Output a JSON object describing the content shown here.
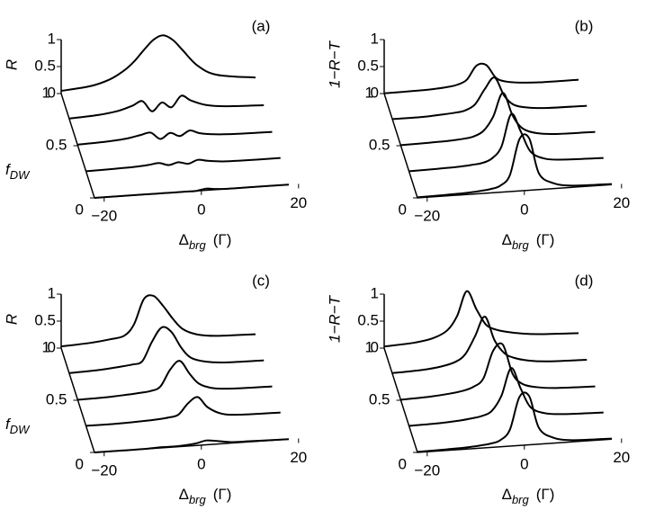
{
  "chart_data": [
    {
      "type": "waterfall",
      "panel_label": "(a)",
      "y_label": "R",
      "z_label": "f",
      "z_label_sub": "DW",
      "x_label": "Δ",
      "x_label_sub": "brg",
      "x_unit": "(Γ)",
      "xlim": [
        -22,
        18
      ],
      "xticks": [
        {
          "value": -20,
          "label": "−20"
        },
        0,
        20
      ],
      "yticks": [
        0,
        0.5,
        1
      ],
      "zticks": [
        0,
        0.5,
        1
      ],
      "color": "#000000",
      "x": [
        -22,
        -16,
        -12,
        -9,
        -7,
        -5,
        -3,
        -1,
        1,
        3,
        6,
        10,
        18
      ],
      "series": [
        {
          "z": 1,
          "values": [
            0.05,
            0.1,
            0.2,
            0.35,
            0.5,
            0.7,
            0.88,
            0.95,
            0.85,
            0.65,
            0.35,
            0.15,
            0.05
          ]
        },
        {
          "z": 0.75,
          "values": [
            0.02,
            0.05,
            0.1,
            0.18,
            0.25,
            0.05,
            0.2,
            0.1,
            0.3,
            0.2,
            0.1,
            0.05,
            0.02
          ]
        },
        {
          "z": 0.5,
          "values": [
            0.02,
            0.04,
            0.07,
            0.12,
            0.15,
            0.02,
            0.12,
            0.05,
            0.14,
            0.08,
            0.04,
            0.02,
            0.01
          ]
        },
        {
          "z": 0.25,
          "values": [
            0.01,
            0.02,
            0.03,
            0.05,
            0.07,
            0.02,
            0.06,
            0.02,
            0.08,
            0.05,
            0.02,
            0.01,
            0.01
          ]
        },
        {
          "z": 0,
          "values": [
            0,
            0,
            0,
            0,
            0,
            0,
            0,
            0,
            0.03,
            0.01,
            0,
            0,
            0
          ]
        }
      ]
    },
    {
      "type": "waterfall",
      "panel_label": "(b)",
      "y_label": "1−R−T",
      "z_label": "",
      "z_label_sub": "",
      "x_label": "Δ",
      "x_label_sub": "brg",
      "x_unit": "(Γ)",
      "xlim": [
        -22,
        18
      ],
      "xticks": [
        {
          "value": -20,
          "label": "−20"
        },
        0,
        20
      ],
      "yticks": [
        0,
        0.5,
        1
      ],
      "zticks": [
        0,
        0.5,
        1
      ],
      "color": "#000000",
      "x": [
        -22,
        -16,
        -12,
        -9,
        -7,
        -5,
        -3,
        -1,
        1,
        3,
        6,
        10,
        18
      ],
      "series": [
        {
          "z": 1,
          "values": [
            0.005,
            0.01,
            0.02,
            0.04,
            0.07,
            0.15,
            0.4,
            0.4,
            0.15,
            0.07,
            0.03,
            0.01,
            0.01
          ]
        },
        {
          "z": 0.75,
          "values": [
            0.01,
            0.01,
            0.03,
            0.05,
            0.08,
            0.18,
            0.45,
            0.65,
            0.3,
            0.12,
            0.05,
            0.02,
            0.01
          ]
        },
        {
          "z": 0.5,
          "values": [
            0.01,
            0.02,
            0.03,
            0.05,
            0.08,
            0.17,
            0.42,
            0.85,
            0.42,
            0.17,
            0.06,
            0.02,
            0.01
          ]
        },
        {
          "z": 0.25,
          "values": [
            0.01,
            0.02,
            0.03,
            0.05,
            0.07,
            0.14,
            0.35,
            0.94,
            0.6,
            0.22,
            0.07,
            0.03,
            0.01
          ]
        },
        {
          "z": 0,
          "values": [
            0.01,
            0.02,
            0.03,
            0.05,
            0.07,
            0.12,
            0.3,
            0.96,
            0.96,
            0.3,
            0.1,
            0.03,
            0.01
          ]
        }
      ]
    },
    {
      "type": "waterfall",
      "panel_label": "(c)",
      "y_label": "R",
      "z_label": "f",
      "z_label_sub": "DW",
      "x_label": "Δ",
      "x_label_sub": "brg",
      "x_unit": "(Γ)",
      "xlim": [
        -22,
        18
      ],
      "xticks": [
        {
          "value": -20,
          "label": "−20"
        },
        0,
        20
      ],
      "yticks": [
        0,
        0.5,
        1
      ],
      "zticks": [
        0,
        0.5,
        1
      ],
      "color": "#000000",
      "x": [
        -22,
        -16,
        -12,
        -9,
        -7,
        -5,
        -3,
        -1,
        1,
        3,
        6,
        10,
        18
      ],
      "series": [
        {
          "z": 1,
          "values": [
            0.03,
            0.06,
            0.1,
            0.15,
            0.35,
            0.8,
            0.85,
            0.65,
            0.4,
            0.2,
            0.08,
            0.03,
            0.01
          ]
        },
        {
          "z": 0.75,
          "values": [
            0.02,
            0.04,
            0.07,
            0.1,
            0.15,
            0.5,
            0.75,
            0.65,
            0.35,
            0.15,
            0.06,
            0.02,
            0.01
          ]
        },
        {
          "z": 0.5,
          "values": [
            0.01,
            0.02,
            0.04,
            0.06,
            0.08,
            0.15,
            0.45,
            0.6,
            0.35,
            0.15,
            0.05,
            0.02,
            0.01
          ]
        },
        {
          "z": 0.25,
          "values": [
            0.01,
            0.01,
            0.02,
            0.03,
            0.04,
            0.06,
            0.1,
            0.3,
            0.4,
            0.2,
            0.06,
            0.02,
            0.01
          ]
        },
        {
          "z": 0,
          "values": [
            0,
            0,
            0,
            0.01,
            0.01,
            0.01,
            0.02,
            0.04,
            0.08,
            0.06,
            0.02,
            0.01,
            0
          ]
        }
      ]
    },
    {
      "type": "waterfall",
      "panel_label": "(d)",
      "y_label": "1−R−T",
      "z_label": "",
      "z_label_sub": "",
      "x_label": "Δ",
      "x_label_sub": "brg",
      "x_unit": "(Γ)",
      "xlim": [
        -22,
        18
      ],
      "xticks": [
        {
          "value": -20,
          "label": "−20"
        },
        0,
        20
      ],
      "yticks": [
        0,
        0.5,
        1
      ],
      "zticks": [
        0,
        0.5,
        1
      ],
      "color": "#000000",
      "x": [
        -22,
        -16,
        -12,
        -9,
        -7,
        -5,
        -3,
        -1,
        1,
        3,
        6,
        10,
        18
      ],
      "series": [
        {
          "z": 1,
          "values": [
            0.03,
            0.06,
            0.12,
            0.25,
            0.5,
            0.95,
            0.6,
            0.3,
            0.2,
            0.15,
            0.1,
            0.06,
            0.03
          ]
        },
        {
          "z": 0.75,
          "values": [
            0.02,
            0.04,
            0.08,
            0.15,
            0.28,
            0.6,
            0.95,
            0.5,
            0.25,
            0.15,
            0.08,
            0.04,
            0.02
          ]
        },
        {
          "z": 0.5,
          "values": [
            0.01,
            0.03,
            0.06,
            0.1,
            0.16,
            0.3,
            0.8,
            0.9,
            0.35,
            0.15,
            0.07,
            0.03,
            0.01
          ]
        },
        {
          "z": 0.25,
          "values": [
            0.01,
            0.02,
            0.04,
            0.07,
            0.1,
            0.18,
            0.45,
            0.95,
            0.55,
            0.2,
            0.07,
            0.03,
            0.01
          ]
        },
        {
          "z": 0,
          "values": [
            0.01,
            0.02,
            0.03,
            0.05,
            0.07,
            0.12,
            0.3,
            0.9,
            0.9,
            0.3,
            0.1,
            0.03,
            0.01
          ]
        }
      ]
    }
  ]
}
